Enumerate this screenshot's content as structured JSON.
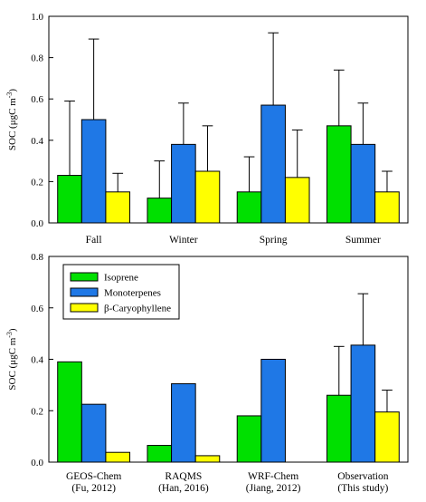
{
  "colors": {
    "Isoprene": "#00e000",
    "Monoterpenes": "#1f78e6",
    "beta_Caryophyllene": "#ffff00"
  },
  "legend": {
    "items": [
      "Isoprene",
      "Monoterpenes",
      "β-Caryophyllene"
    ]
  },
  "chart_data": [
    {
      "type": "bar",
      "ylabel_main": "SOC (μgC m",
      "ylabel_sup": "-3",
      "ylabel_close": ")",
      "ylim": [
        0,
        1.0
      ],
      "yticks": [
        "0.0",
        "0.2",
        "0.4",
        "0.6",
        "0.8",
        "1.0"
      ],
      "categories": [
        "Fall",
        "Winter",
        "Spring",
        "Summer"
      ],
      "series": [
        {
          "name": "Isoprene",
          "values": [
            0.23,
            0.12,
            0.15,
            0.47
          ],
          "err": [
            0.36,
            0.18,
            0.17,
            0.27
          ]
        },
        {
          "name": "Monoterpenes",
          "values": [
            0.5,
            0.38,
            0.57,
            0.38
          ],
          "err": [
            0.39,
            0.2,
            0.35,
            0.2
          ]
        },
        {
          "name": "β-Caryophyllene",
          "values": [
            0.15,
            0.25,
            0.22,
            0.15
          ],
          "err": [
            0.09,
            0.22,
            0.23,
            0.1
          ]
        }
      ]
    },
    {
      "type": "bar",
      "ylabel_main": "SOC (μgC m",
      "ylabel_sup": "-3",
      "ylabel_close": ")",
      "ylim": [
        0,
        0.8
      ],
      "yticks": [
        "0.0",
        "0.2",
        "0.4",
        "0.6",
        "0.8"
      ],
      "categories": [
        [
          "GEOS-Chem",
          "(Fu, 2012)"
        ],
        [
          "RAQMS",
          "(Han, 2016)"
        ],
        [
          "WRF-Chem",
          "(Jiang, 2012)"
        ],
        [
          "Observation",
          "(This study)"
        ]
      ],
      "series": [
        {
          "name": "Isoprene",
          "values": [
            0.39,
            0.065,
            0.18,
            0.26
          ],
          "err": [
            null,
            null,
            null,
            0.19
          ]
        },
        {
          "name": "Monoterpenes",
          "values": [
            0.225,
            0.305,
            0.4,
            0.455
          ],
          "err": [
            null,
            null,
            null,
            0.2
          ]
        },
        {
          "name": "β-Caryophyllene",
          "values": [
            0.038,
            0.025,
            0.0,
            0.195
          ],
          "err": [
            null,
            null,
            null,
            0.085
          ]
        }
      ]
    }
  ]
}
